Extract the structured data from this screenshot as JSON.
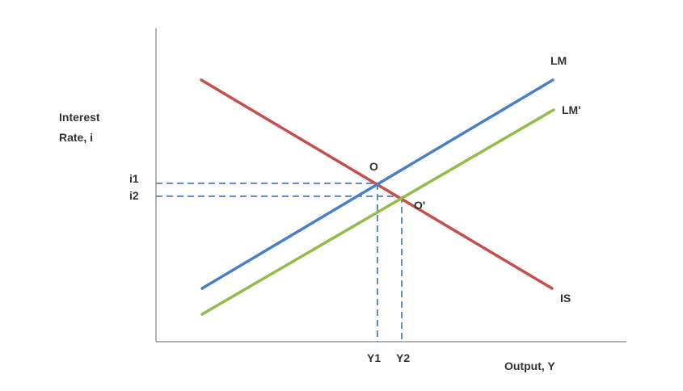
{
  "axes": {
    "y_label_line1": "Interest",
    "y_label_line2": "Rate, i",
    "x_label": "Output, Y",
    "axis_color": "#999999"
  },
  "curves": {
    "lm": {
      "label": "LM",
      "color": "#4a7fc6"
    },
    "lm_prime": {
      "label": "LM'",
      "color": "#93bb4a"
    },
    "is": {
      "label": "IS",
      "color": "#c5504b"
    }
  },
  "points": {
    "o": {
      "label": "O"
    },
    "o_prime": {
      "label": "O'"
    }
  },
  "ticks": {
    "i1": "i1",
    "i2": "i2",
    "y1": "Y1",
    "y2": "Y2"
  },
  "guide_color": "#4a7fc6"
}
